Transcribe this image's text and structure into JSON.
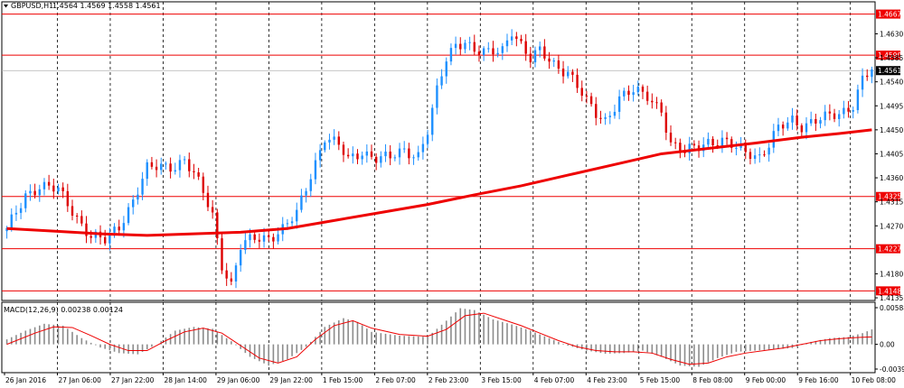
{
  "header": {
    "symbol": "GBPUSD,H1",
    "quote": "1.4564 1.4569 1.4558 1.4561"
  },
  "macd": {
    "label": "MACD(12,26,9) 0.00238 0.00124"
  },
  "colors": {
    "bull": "#1e90ff",
    "bear": "#dd0000",
    "ma": "#ee0000",
    "level": "#ee0000",
    "grid": "#000000",
    "histogram": "#8c8c8c",
    "signal": "#ee0000",
    "current_price_bg": "#000000"
  },
  "chart_data": [
    {
      "type": "candlestick",
      "panel": "price",
      "ylim": [
        1.413,
        1.469
      ],
      "y_ticks": [
        "1.4630",
        "1.4585",
        "1.4540",
        "1.4495",
        "1.4450",
        "1.4405",
        "1.4360",
        "1.4315",
        "1.4270",
        "1.4180",
        "1.4135"
      ],
      "levels": [
        "1.4667",
        "1.4590",
        "1.4325",
        "1.4227",
        "1.4148"
      ],
      "current_price": "1.4561",
      "x_labels": [
        "26 Jan 2016",
        "27 Jan 06:00",
        "27 Jan 22:00",
        "28 Jan 14:00",
        "29 Jan 06:00",
        "29 Jan 22:00",
        "1 Feb 15:00",
        "2 Feb 07:00",
        "2 Feb 23:00",
        "3 Feb 15:00",
        "4 Feb 07:00",
        "4 Feb 23:00",
        "5 Feb 15:00",
        "8 Feb 08:00",
        "9 Feb 00:00",
        "9 Feb 16:00",
        "10 Feb 08:00"
      ],
      "close_path": [
        [
          0,
          1.426
        ],
        [
          4,
          1.433
        ],
        [
          7,
          1.4345
        ],
        [
          11,
          1.4335
        ],
        [
          14,
          1.43
        ],
        [
          18,
          1.425
        ],
        [
          21,
          1.424
        ],
        [
          24,
          1.427
        ],
        [
          27,
          1.432
        ],
        [
          30,
          1.4375
        ],
        [
          33,
          1.438
        ],
        [
          36,
          1.4385
        ],
        [
          38,
          1.4395
        ],
        [
          40,
          1.4365
        ],
        [
          42,
          1.433
        ],
        [
          44,
          1.429
        ],
        [
          46,
          1.42
        ],
        [
          48,
          1.416
        ],
        [
          50,
          1.423
        ],
        [
          53,
          1.4245
        ],
        [
          56,
          1.425
        ],
        [
          59,
          1.4265
        ],
        [
          62,
          1.429
        ],
        [
          64,
          1.434
        ],
        [
          66,
          1.439
        ],
        [
          68,
          1.444
        ],
        [
          71,
          1.442
        ],
        [
          73,
          1.439
        ],
        [
          76,
          1.441
        ],
        [
          79,
          1.44
        ],
        [
          82,
          1.4395
        ],
        [
          85,
          1.441
        ],
        [
          88,
          1.4405
        ],
        [
          90,
          1.445
        ],
        [
          92,
          1.452
        ],
        [
          94,
          1.458
        ],
        [
          96,
          1.461
        ],
        [
          98,
          1.462
        ],
        [
          100,
          1.46
        ],
        [
          103,
          1.459
        ],
        [
          106,
          1.46
        ],
        [
          108,
          1.464
        ],
        [
          110,
          1.461
        ],
        [
          112,
          1.458
        ],
        [
          114,
          1.4595
        ],
        [
          117,
          1.4575
        ],
        [
          120,
          1.456
        ],
        [
          122,
          1.453
        ],
        [
          124,
          1.45
        ],
        [
          126,
          1.448
        ],
        [
          128,
          1.447
        ],
        [
          131,
          1.451
        ],
        [
          134,
          1.452
        ],
        [
          137,
          1.4515
        ],
        [
          140,
          1.449
        ],
        [
          142,
          1.442
        ],
        [
          145,
          1.4405
        ],
        [
          147,
          1.442
        ],
        [
          150,
          1.443
        ],
        [
          153,
          1.4425
        ],
        [
          156,
          1.4415
        ],
        [
          159,
          1.441
        ],
        [
          161,
          1.44
        ],
        [
          163,
          1.442
        ],
        [
          165,
          1.445
        ],
        [
          168,
          1.447
        ],
        [
          170,
          1.446
        ],
        [
          172,
          1.4465
        ],
        [
          175,
          1.447
        ],
        [
          178,
          1.448
        ],
        [
          181,
          1.45
        ],
        [
          183,
          1.4545
        ],
        [
          185,
          1.4561
        ]
      ],
      "ma_path": [
        [
          0,
          1.4265
        ],
        [
          10,
          1.426
        ],
        [
          20,
          1.4255
        ],
        [
          30,
          1.4252
        ],
        [
          40,
          1.4255
        ],
        [
          50,
          1.4258
        ],
        [
          60,
          1.4265
        ],
        [
          70,
          1.428
        ],
        [
          80,
          1.4295
        ],
        [
          90,
          1.431
        ],
        [
          100,
          1.4328
        ],
        [
          110,
          1.4345
        ],
        [
          120,
          1.4365
        ],
        [
          130,
          1.4385
        ],
        [
          140,
          1.4405
        ],
        [
          150,
          1.4415
        ],
        [
          160,
          1.4425
        ],
        [
          170,
          1.4436
        ],
        [
          178,
          1.4443
        ],
        [
          185,
          1.445
        ]
      ]
    },
    {
      "type": "macd",
      "panel": "indicator",
      "ylim": [
        -0.00396,
        0.00588
      ],
      "y_ticks": [
        "0.00588",
        "0.00",
        "-0.00396"
      ],
      "histogram_path": [
        [
          0,
          0.0008
        ],
        [
          4,
          0.0022
        ],
        [
          8,
          0.0033
        ],
        [
          12,
          0.003
        ],
        [
          16,
          0.001
        ],
        [
          20,
          -0.0005
        ],
        [
          24,
          -0.0014
        ],
        [
          28,
          -0.0016
        ],
        [
          32,
          0.0
        ],
        [
          36,
          0.0022
        ],
        [
          40,
          0.0028
        ],
        [
          44,
          0.0025
        ],
        [
          48,
          0.0005
        ],
        [
          52,
          -0.002
        ],
        [
          56,
          -0.0034
        ],
        [
          60,
          -0.0024
        ],
        [
          64,
          -0.0004
        ],
        [
          68,
          0.0028
        ],
        [
          72,
          0.0042
        ],
        [
          75,
          0.0036
        ],
        [
          78,
          0.002
        ],
        [
          84,
          0.0014
        ],
        [
          90,
          0.0012
        ],
        [
          94,
          0.0038
        ],
        [
          97,
          0.0058
        ],
        [
          100,
          0.0055
        ],
        [
          104,
          0.004
        ],
        [
          108,
          0.0032
        ],
        [
          112,
          0.0022
        ],
        [
          116,
          0.001
        ],
        [
          120,
          -0.0002
        ],
        [
          124,
          -0.001
        ],
        [
          128,
          -0.0015
        ],
        [
          132,
          -0.0014
        ],
        [
          136,
          -0.001
        ],
        [
          140,
          -0.002
        ],
        [
          144,
          -0.0034
        ],
        [
          148,
          -0.0036
        ],
        [
          152,
          -0.0022
        ],
        [
          156,
          -0.0012
        ],
        [
          160,
          -0.001
        ],
        [
          164,
          -0.0008
        ],
        [
          168,
          -0.0006
        ],
        [
          172,
          0.0004
        ],
        [
          176,
          0.001
        ],
        [
          180,
          0.0012
        ],
        [
          183,
          0.0018
        ],
        [
          185,
          0.0024
        ]
      ],
      "signal_path": [
        [
          0,
          0.0
        ],
        [
          6,
          0.0018
        ],
        [
          10,
          0.0028
        ],
        [
          14,
          0.0027
        ],
        [
          18,
          0.0014
        ],
        [
          22,
          0.0
        ],
        [
          26,
          -0.001
        ],
        [
          30,
          -0.001
        ],
        [
          34,
          0.0006
        ],
        [
          38,
          0.002
        ],
        [
          42,
          0.0026
        ],
        [
          46,
          0.0018
        ],
        [
          50,
          -0.0002
        ],
        [
          54,
          -0.0022
        ],
        [
          58,
          -0.003
        ],
        [
          62,
          -0.002
        ],
        [
          66,
          0.0008
        ],
        [
          70,
          0.003
        ],
        [
          74,
          0.0038
        ],
        [
          78,
          0.0026
        ],
        [
          84,
          0.0016
        ],
        [
          90,
          0.0013
        ],
        [
          94,
          0.0024
        ],
        [
          98,
          0.0046
        ],
        [
          102,
          0.005
        ],
        [
          106,
          0.004
        ],
        [
          110,
          0.003
        ],
        [
          114,
          0.0018
        ],
        [
          118,
          0.0006
        ],
        [
          122,
          -0.0004
        ],
        [
          126,
          -0.001
        ],
        [
          130,
          -0.0012
        ],
        [
          134,
          -0.0012
        ],
        [
          138,
          -0.0014
        ],
        [
          142,
          -0.0024
        ],
        [
          146,
          -0.0032
        ],
        [
          150,
          -0.003
        ],
        [
          154,
          -0.002
        ],
        [
          158,
          -0.0014
        ],
        [
          162,
          -0.001
        ],
        [
          166,
          -0.0006
        ],
        [
          170,
          0.0
        ],
        [
          174,
          0.0006
        ],
        [
          178,
          0.0009
        ],
        [
          182,
          0.0011
        ],
        [
          185,
          0.0012
        ]
      ]
    }
  ]
}
